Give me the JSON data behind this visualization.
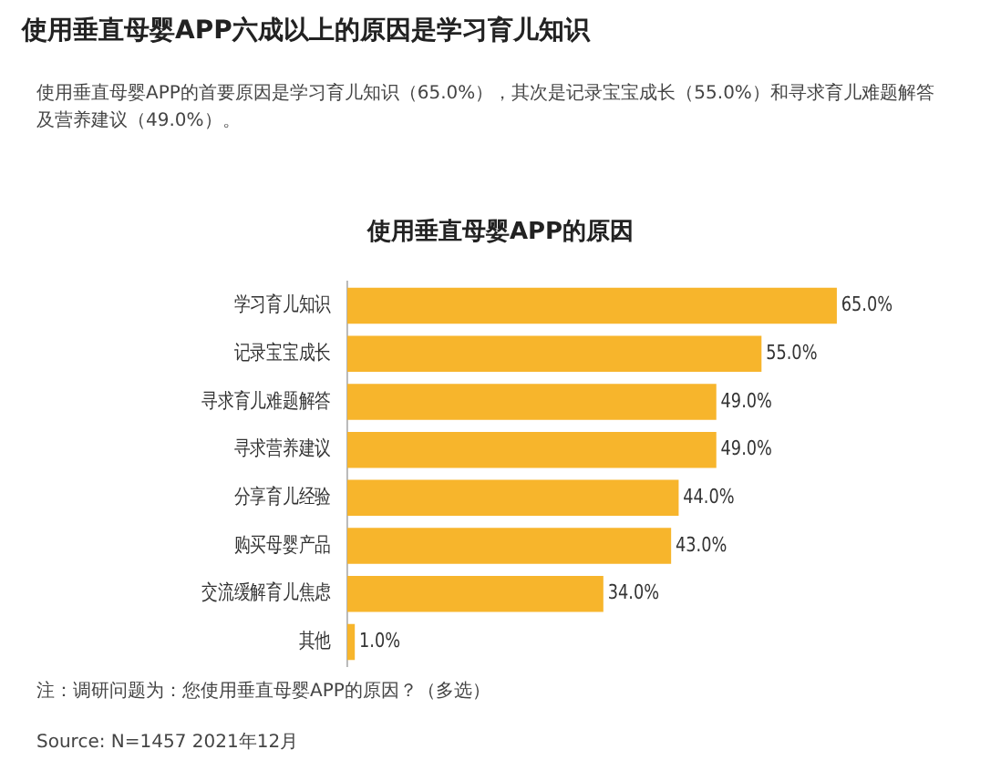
{
  "chart_data": {
    "type": "bar",
    "orientation": "horizontal",
    "title": "使用垂直母婴APP六成以上的原因是学习育儿知识",
    "subtitle": "使用垂直母婴APP的首要原因是学习育儿知识（65.0%），其次是记录宝宝成长（55.0%）和寻求育儿难题解答及营养建议（49.0%）。",
    "annotations": [
      "使用垂直母婴APP的原因",
      "注：调研问题为：您使用垂直母婴APP的原因？（多选）",
      "Source: N=1457 2021年12月"
    ],
    "categories": [
      "学习育儿知识",
      "记录宝宝成长",
      "寻求育儿难题解答",
      "寻求营养建议",
      "分享育儿经验",
      "购买母婴产品",
      "交流缓解育儿焦虑",
      "其他"
    ],
    "values": [
      65,
      55,
      49,
      49,
      44,
      43,
      34,
      1
    ],
    "value_labels": [
      "65.0%",
      "55.0%",
      "49.0%",
      "49.0%",
      "44.0%",
      "43.0%",
      "34.0%",
      "1.0%"
    ],
    "color": "#f7b52c",
    "legend": false
  }
}
